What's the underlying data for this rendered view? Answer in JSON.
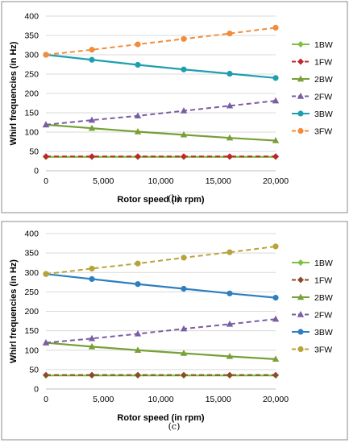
{
  "chart_data": [
    {
      "type": "line",
      "caption": "(b)",
      "xlabel": "Rotor speed (in rpm)",
      "ylabel": "Whirl frequencies (in Hz)",
      "xlim": [
        0,
        20000
      ],
      "ylim": [
        0,
        400
      ],
      "x_ticks": [
        "0",
        "5,000",
        "10,000",
        "15,000",
        "20,000"
      ],
      "y_ticks": [
        "0",
        "50",
        "100",
        "150",
        "200",
        "250",
        "300",
        "350",
        "400"
      ],
      "grid": true,
      "legend": "right",
      "x": [
        0,
        4000,
        8000,
        12000,
        16000,
        20000
      ],
      "series": [
        {
          "name": "1BW",
          "color": "#7cc241",
          "dash": false,
          "marker": "diamond",
          "values": [
            36,
            36,
            36,
            36,
            36,
            36
          ]
        },
        {
          "name": "1FW",
          "color": "#c0272d",
          "dash": true,
          "marker": "diamond",
          "values": [
            37,
            37,
            37,
            37,
            37,
            37
          ]
        },
        {
          "name": "2BW",
          "color": "#77a037",
          "dash": false,
          "marker": "triangle",
          "values": [
            119,
            110,
            101,
            93,
            85,
            78
          ]
        },
        {
          "name": "2FW",
          "color": "#7b5da3",
          "dash": true,
          "marker": "triangle",
          "values": [
            119,
            131,
            142,
            155,
            168,
            181
          ]
        },
        {
          "name": "3BW",
          "color": "#1d9fb0",
          "dash": false,
          "marker": "circle",
          "values": [
            300,
            287,
            274,
            262,
            251,
            240
          ]
        },
        {
          "name": "3FW",
          "color": "#f28c3a",
          "dash": true,
          "marker": "circle",
          "values": [
            300,
            313,
            327,
            341,
            355,
            370
          ]
        }
      ]
    },
    {
      "type": "line",
      "caption": "(c)",
      "xlabel": "Rotor speed (in rpm)",
      "ylabel": "Whirl frequencies (in Hz)",
      "xlim": [
        0,
        20000
      ],
      "ylim": [
        0,
        400
      ],
      "x_ticks": [
        "0",
        "5,000",
        "10,000",
        "15,000",
        "20,000"
      ],
      "y_ticks": [
        "0",
        "50",
        "100",
        "150",
        "200",
        "250",
        "300",
        "350",
        "400"
      ],
      "grid": true,
      "legend": "right",
      "x": [
        0,
        4000,
        8000,
        12000,
        16000,
        20000
      ],
      "series": [
        {
          "name": "1BW",
          "color": "#7cc241",
          "dash": false,
          "marker": "diamond",
          "values": [
            35,
            35,
            35,
            35,
            35,
            35
          ]
        },
        {
          "name": "1FW",
          "color": "#8b4a2b",
          "dash": true,
          "marker": "diamond",
          "values": [
            36,
            36,
            36,
            36,
            36,
            36
          ]
        },
        {
          "name": "2BW",
          "color": "#77a037",
          "dash": false,
          "marker": "triangle",
          "values": [
            119,
            109,
            100,
            92,
            84,
            77
          ]
        },
        {
          "name": "2FW",
          "color": "#7b5da3",
          "dash": true,
          "marker": "triangle",
          "values": [
            119,
            130,
            142,
            155,
            167,
            180
          ]
        },
        {
          "name": "3BW",
          "color": "#2e7fc0",
          "dash": false,
          "marker": "circle",
          "values": [
            296,
            283,
            270,
            258,
            246,
            235
          ]
        },
        {
          "name": "3FW",
          "color": "#b8a33a",
          "dash": true,
          "marker": "circle",
          "values": [
            296,
            310,
            323,
            338,
            352,
            367
          ]
        }
      ]
    }
  ]
}
